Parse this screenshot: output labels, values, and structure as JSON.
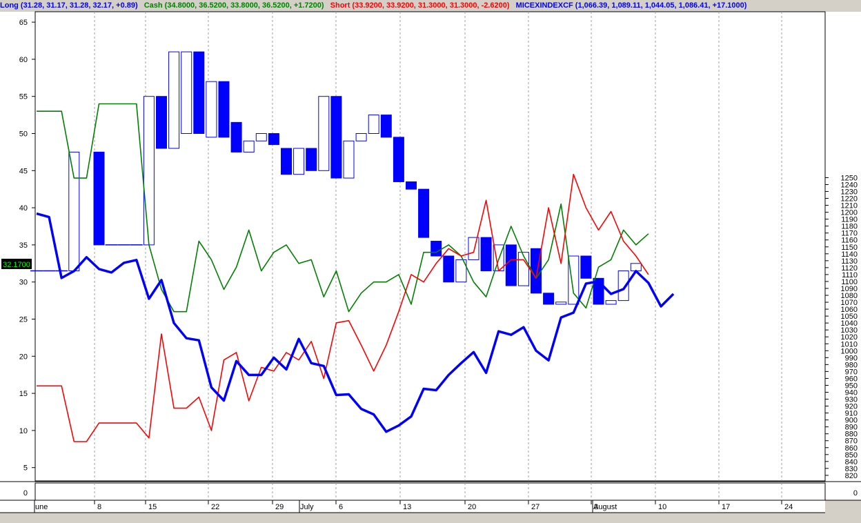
{
  "title_bar": {
    "long": "Long (31.28, 31.17, 31.28, 32.17, +0.89)",
    "cash": "Cash (34.8000, 36.5200, 33.8000, 36.5200, +1.7200)",
    "short": "Short (33.9200, 33.9200, 31.3000, 31.3000, -2.6200)",
    "index": "MICEXINDEXCF (1,066.39, 1,089.11, 1,044.05, 1,086.41, +17.1000)"
  },
  "colors": {
    "long": "#0000ff",
    "cash": "#008000",
    "short": "#ff0000",
    "index": "#0000ff"
  },
  "last_value_label": "32.1700",
  "chart_data": {
    "type": "line",
    "x_labels": [
      "une",
      "8",
      "15",
      "22",
      "29",
      "July",
      "6",
      "13",
      "20",
      "27",
      "3",
      "August",
      "10",
      "17",
      "24"
    ],
    "left_axis": {
      "ticks": [
        5,
        10,
        15,
        20,
        25,
        30,
        35,
        40,
        45,
        50,
        55,
        60,
        65
      ],
      "ylim": [
        1.5,
        66.5
      ]
    },
    "right_axis": {
      "ticks": [
        820,
        830,
        840,
        850,
        860,
        870,
        880,
        890,
        900,
        910,
        920,
        930,
        940,
        950,
        960,
        970,
        980,
        990,
        1000,
        1010,
        1020,
        1030,
        1040,
        1050,
        1060,
        1070,
        1080,
        1090,
        1100,
        1110,
        1120,
        1130,
        1140,
        1150,
        1160,
        1170,
        1180,
        1190,
        1200,
        1210,
        1220,
        1230,
        1240,
        1250
      ],
      "ylim": [
        816,
        1257
      ]
    },
    "lower_panel": {
      "tick": "0"
    },
    "grid": true,
    "series": [
      {
        "name": "Cash",
        "color": "#008000",
        "values": [
          [
            0,
            53
          ],
          [
            1,
            53
          ],
          [
            2,
            53
          ],
          [
            3,
            44
          ],
          [
            4,
            44
          ],
          [
            5,
            54
          ],
          [
            6,
            54
          ],
          [
            7,
            54
          ],
          [
            8,
            54
          ],
          [
            9,
            35
          ],
          [
            10,
            29
          ],
          [
            11,
            26
          ],
          [
            12,
            26
          ],
          [
            13,
            35.5
          ],
          [
            14,
            33
          ],
          [
            15,
            29
          ],
          [
            16,
            32
          ],
          [
            17,
            37
          ],
          [
            18,
            31.5
          ],
          [
            19,
            34
          ],
          [
            20,
            35
          ],
          [
            21,
            32.5
          ],
          [
            22,
            33
          ],
          [
            23,
            28
          ],
          [
            24,
            31.5
          ],
          [
            25,
            26
          ],
          [
            26,
            28.5
          ],
          [
            27,
            30
          ],
          [
            28,
            30
          ],
          [
            29,
            31
          ],
          [
            30,
            27
          ],
          [
            31,
            34
          ],
          [
            32,
            34
          ],
          [
            33,
            35
          ],
          [
            34,
            33.5
          ],
          [
            35,
            30
          ],
          [
            36,
            28
          ],
          [
            37,
            33
          ],
          [
            38,
            37.5
          ],
          [
            39,
            33.5
          ],
          [
            40,
            30.5
          ],
          [
            41,
            33
          ],
          [
            42,
            40.5
          ],
          [
            43,
            28.5
          ],
          [
            44,
            26.5
          ],
          [
            45,
            32
          ],
          [
            46,
            33
          ],
          [
            47,
            37
          ],
          [
            48,
            35
          ],
          [
            49,
            36.5
          ]
        ]
      },
      {
        "name": "Short",
        "color": "#ff0000",
        "values": [
          [
            0,
            16
          ],
          [
            1,
            16
          ],
          [
            2,
            16
          ],
          [
            3,
            8.5
          ],
          [
            4,
            8.5
          ],
          [
            5,
            11
          ],
          [
            6,
            11
          ],
          [
            7,
            11
          ],
          [
            8,
            11
          ],
          [
            9,
            9
          ],
          [
            10,
            23
          ],
          [
            11,
            13
          ],
          [
            12,
            13
          ],
          [
            13,
            14.5
          ],
          [
            14,
            10
          ],
          [
            15,
            19.5
          ],
          [
            16,
            20.5
          ],
          [
            17,
            14
          ],
          [
            18,
            18.5
          ],
          [
            19,
            18
          ],
          [
            20,
            20.5
          ],
          [
            21,
            19.5
          ],
          [
            22,
            22
          ],
          [
            23,
            17
          ],
          [
            24,
            24.5
          ],
          [
            25,
            24.8
          ],
          [
            26,
            21.5
          ],
          [
            27,
            18
          ],
          [
            28,
            21.5
          ],
          [
            29,
            26
          ],
          [
            30,
            31
          ],
          [
            31,
            30
          ],
          [
            32,
            32.5
          ],
          [
            33,
            34.5
          ],
          [
            34,
            33.5
          ],
          [
            35,
            34
          ],
          [
            36,
            41
          ],
          [
            37,
            31.5
          ],
          [
            38,
            33
          ],
          [
            39,
            33
          ],
          [
            40,
            30.5
          ],
          [
            41,
            40
          ],
          [
            42,
            32.5
          ],
          [
            43,
            44.5
          ],
          [
            44,
            40
          ],
          [
            45,
            37
          ],
          [
            46,
            39.5
          ],
          [
            47,
            35.5
          ],
          [
            48,
            33.5
          ],
          [
            49,
            31
          ]
        ]
      },
      {
        "name": "MICEXINDEXCF",
        "color": "#0000ff",
        "values": [
          [
            0,
            1198
          ],
          [
            1,
            1193
          ],
          [
            2,
            1105
          ],
          [
            3,
            1115
          ],
          [
            4,
            1135
          ],
          [
            5,
            1118
          ],
          [
            6,
            1113
          ],
          [
            7,
            1127
          ],
          [
            8,
            1131
          ],
          [
            9,
            1075
          ],
          [
            10,
            1102
          ],
          [
            11,
            1040
          ],
          [
            12,
            1018
          ],
          [
            13,
            1015
          ],
          [
            14,
            947
          ],
          [
            15,
            928
          ],
          [
            16,
            985
          ],
          [
            17,
            965
          ],
          [
            18,
            965
          ],
          [
            19,
            990
          ],
          [
            20,
            973
          ],
          [
            21,
            1017
          ],
          [
            22,
            982
          ],
          [
            23,
            978
          ],
          [
            24,
            936
          ],
          [
            25,
            937
          ],
          [
            26,
            916
          ],
          [
            27,
            908
          ],
          [
            28,
            883
          ],
          [
            29,
            892
          ],
          [
            30,
            905
          ],
          [
            31,
            945
          ],
          [
            32,
            943
          ],
          [
            33,
            965
          ],
          [
            34,
            982
          ],
          [
            35,
            998
          ],
          [
            36,
            968
          ],
          [
            37,
            1028
          ],
          [
            38,
            1023
          ],
          [
            39,
            1034
          ],
          [
            40,
            1000
          ],
          [
            41,
            986
          ],
          [
            42,
            1048
          ],
          [
            43,
            1055
          ],
          [
            44,
            1097
          ],
          [
            45,
            1100
          ],
          [
            46,
            1082
          ],
          [
            47,
            1089
          ],
          [
            48,
            1115
          ],
          [
            49,
            1098
          ],
          [
            50,
            1064
          ],
          [
            51,
            1082
          ]
        ]
      }
    ],
    "candles": {
      "name": "Long",
      "color": "#0000ff",
      "bars": [
        [
          0,
          31.5,
          31.5,
          "flat"
        ],
        [
          1,
          31.5,
          31.5,
          "flat"
        ],
        [
          2,
          31.5,
          31.5,
          "flat"
        ],
        [
          3,
          31.5,
          47.5,
          "hollow"
        ],
        [
          5,
          35,
          47.5,
          "filled"
        ],
        [
          6,
          35,
          35,
          "flat"
        ],
        [
          7,
          35,
          35,
          "flat"
        ],
        [
          8,
          35,
          35,
          "flat"
        ],
        [
          9,
          35,
          55,
          "hollow"
        ],
        [
          10,
          48,
          55,
          "filled"
        ],
        [
          11,
          48,
          61,
          "hollow"
        ],
        [
          12,
          50,
          61,
          "hollow"
        ],
        [
          13,
          50,
          61,
          "filled"
        ],
        [
          14,
          49.5,
          57,
          "hollow"
        ],
        [
          15,
          49.5,
          57,
          "filled"
        ],
        [
          16,
          47.5,
          51.5,
          "filled"
        ],
        [
          17,
          47.5,
          49,
          "hollow"
        ],
        [
          18,
          49,
          50,
          "hollow"
        ],
        [
          19,
          48.5,
          50,
          "filled"
        ],
        [
          20,
          44.5,
          48,
          "filled"
        ],
        [
          21,
          44.5,
          48,
          "hollow"
        ],
        [
          22,
          45,
          48,
          "filled"
        ],
        [
          23,
          45,
          55,
          "hollow"
        ],
        [
          24,
          44,
          55,
          "filled"
        ],
        [
          25,
          44,
          49,
          "hollow"
        ],
        [
          26,
          49,
          50,
          "hollow"
        ],
        [
          27,
          50,
          52.5,
          "hollow"
        ],
        [
          28,
          49.5,
          52.5,
          "filled"
        ],
        [
          29,
          43.5,
          49.5,
          "filled"
        ],
        [
          30,
          42.5,
          43.5,
          "filled"
        ],
        [
          31,
          36,
          42.5,
          "filled"
        ],
        [
          32,
          33.5,
          35.5,
          "filled"
        ],
        [
          33,
          30,
          33.5,
          "filled"
        ],
        [
          34,
          30,
          33,
          "hollow"
        ],
        [
          35,
          33,
          36,
          "hollow"
        ],
        [
          36,
          31.5,
          36,
          "filled"
        ],
        [
          37,
          31.5,
          35,
          "hollow"
        ],
        [
          38,
          29.5,
          35,
          "filled"
        ],
        [
          39,
          29.5,
          34,
          "hollow"
        ],
        [
          40,
          28.5,
          34.5,
          "filled"
        ],
        [
          41,
          27,
          28.5,
          "filled"
        ],
        [
          42,
          27,
          27.3,
          "hollow"
        ],
        [
          43,
          27,
          33.5,
          "hollow"
        ],
        [
          44,
          30.5,
          33.5,
          "filled"
        ],
        [
          45,
          27,
          30.5,
          "filled"
        ],
        [
          46,
          27,
          27.5,
          "hollow"
        ],
        [
          47,
          27.5,
          31.5,
          "hollow"
        ],
        [
          48,
          31.5,
          32.5,
          "hollow"
        ]
      ]
    }
  }
}
